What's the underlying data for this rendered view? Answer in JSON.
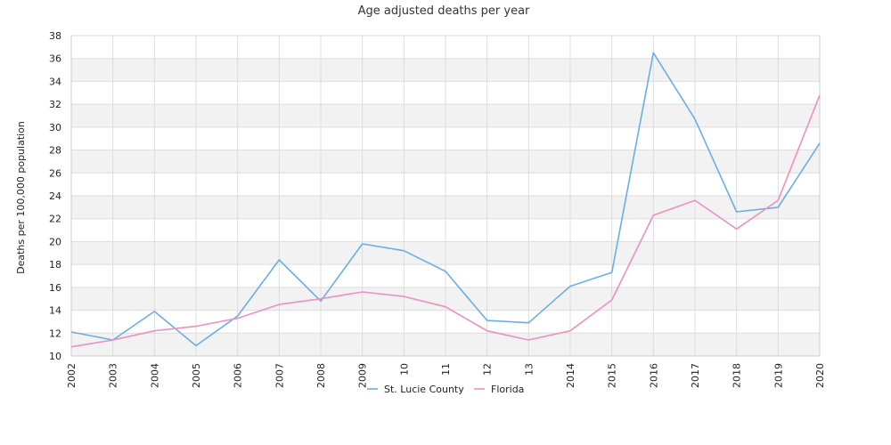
{
  "chart_data": {
    "type": "line",
    "title": "Age adjusted deaths per year",
    "xlabel": "",
    "ylabel": "Deaths per 100,000 population",
    "x": [
      "2002",
      "2003",
      "2004",
      "2005",
      "2006",
      "2007",
      "2008",
      "2009",
      "2010",
      "2011",
      "2012",
      "2013",
      "2014",
      "2015",
      "2016",
      "2017",
      "2018",
      "2019",
      "2020"
    ],
    "x_tick_labels": [
      "2002",
      "2003",
      "2004",
      "2005",
      "2006",
      "2007",
      "2008",
      "2009",
      "10",
      "11",
      "12",
      "13",
      "2014",
      "2015",
      "2016",
      "2017",
      "2018",
      "2019",
      "2020"
    ],
    "ylim": [
      10,
      38
    ],
    "yticks": [
      10,
      12,
      14,
      16,
      18,
      20,
      22,
      24,
      26,
      28,
      30,
      32,
      34,
      36,
      38
    ],
    "grid": true,
    "legend_position": "bottom",
    "series": [
      {
        "name": "St. Lucie County",
        "color": "#6aaee8",
        "values": [
          12.1,
          11.4,
          13.9,
          10.9,
          13.5,
          18.4,
          14.8,
          19.8,
          19.2,
          17.4,
          13.1,
          12.9,
          16.1,
          17.3,
          36.5,
          30.7,
          22.6,
          23.0,
          28.6
        ]
      },
      {
        "name": "Florida",
        "color": "#ee8fc0",
        "values": [
          10.8,
          11.4,
          12.2,
          12.6,
          13.3,
          14.5,
          15.0,
          15.6,
          15.2,
          14.3,
          12.2,
          11.4,
          12.2,
          14.9,
          22.3,
          23.6,
          21.1,
          23.6,
          32.8
        ]
      }
    ],
    "colors": {
      "band": "#f2f2f2",
      "gridline": "#dddddd",
      "axis": "#cccccc"
    }
  }
}
